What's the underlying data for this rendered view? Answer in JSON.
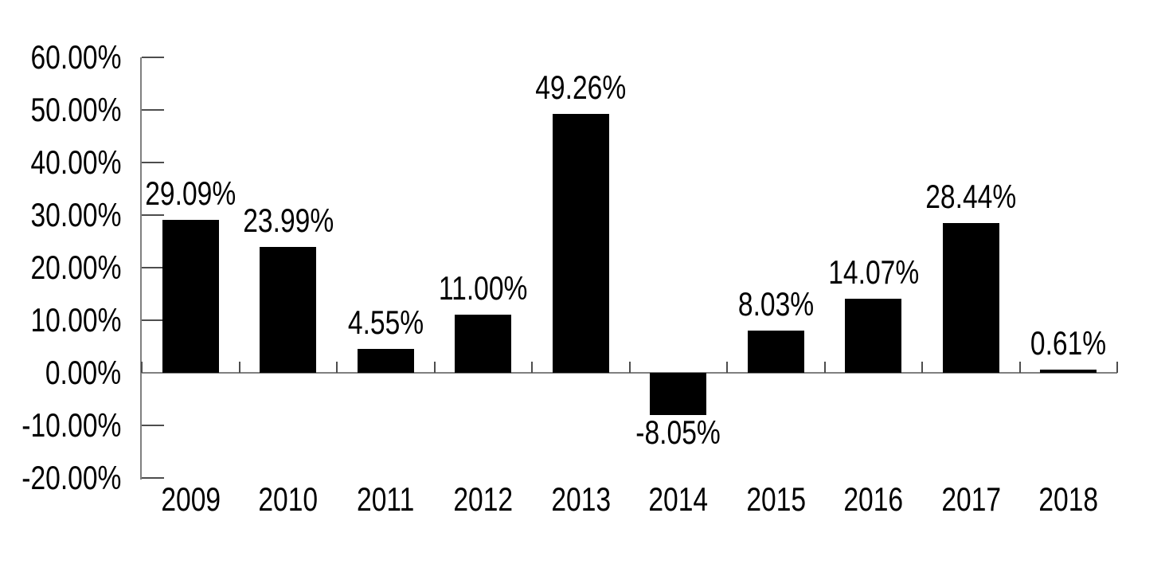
{
  "chart_data": {
    "type": "bar",
    "title": "",
    "xlabel": "",
    "ylabel": "",
    "categories": [
      "2009",
      "2010",
      "2011",
      "2012",
      "2013",
      "2014",
      "2015",
      "2016",
      "2017",
      "2018"
    ],
    "values": [
      29.09,
      23.99,
      4.55,
      11.0,
      49.26,
      -8.05,
      8.03,
      14.07,
      28.44,
      0.61
    ],
    "value_labels": [
      "29.09%",
      "23.99%",
      "4.55%",
      "11.00%",
      "49.26%",
      "-8.05%",
      "8.03%",
      "14.07%",
      "28.44%",
      "0.61%"
    ],
    "y_tick_values": [
      60,
      50,
      40,
      30,
      20,
      10,
      0,
      -10,
      -20
    ],
    "y_tick_labels": [
      "60.00%",
      "50.00%",
      "40.00%",
      "30.00%",
      "20.00%",
      "10.00%",
      "0.00%",
      "-10.00%",
      "-20.00%"
    ],
    "ylim": [
      -20,
      60
    ],
    "grid": false,
    "legend": "none",
    "data_label_position": "outside-end",
    "bar_color": "#000000",
    "axis_color": "#808080",
    "tick_color": "#4d4d4d",
    "text_color": "#000000",
    "background_color": "#ffffff"
  }
}
